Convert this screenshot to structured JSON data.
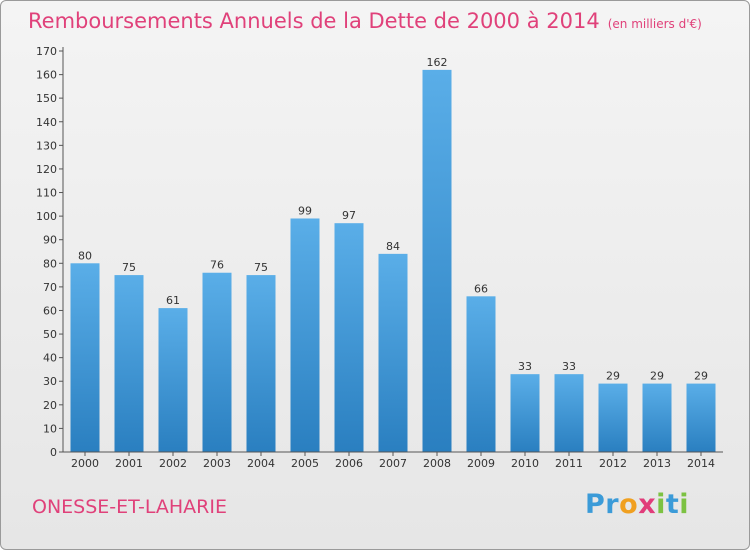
{
  "title": "Remboursements Annuels de la Dette de 2000 à 2014",
  "unit": "(en milliers d'€)",
  "place": "ONESSE-ET-LAHARIE",
  "logo": {
    "letters": [
      "P",
      "r",
      "o",
      "x",
      "i",
      "t",
      "i"
    ],
    "colors": [
      "#3b9bd8",
      "#3b9bd8",
      "#f0a020",
      "#e13c7a",
      "#7cc242",
      "#3b9bd8",
      "#7cc242"
    ]
  },
  "colors": {
    "bar_top": "#5aaee8",
    "bar_bottom": "#2a7fc0",
    "text_accent": "#e0417a"
  },
  "chart_data": {
    "type": "bar",
    "categories": [
      "2000",
      "2001",
      "2002",
      "2003",
      "2004",
      "2005",
      "2006",
      "2007",
      "2008",
      "2009",
      "2010",
      "2011",
      "2012",
      "2013",
      "2014"
    ],
    "values": [
      80,
      75,
      61,
      76,
      75,
      99,
      97,
      84,
      162,
      66,
      33,
      33,
      29,
      29,
      29
    ],
    "ylim": [
      0,
      170
    ],
    "yticks": [
      0,
      10,
      20,
      30,
      40,
      50,
      60,
      70,
      80,
      90,
      100,
      110,
      120,
      130,
      140,
      150,
      160,
      170
    ],
    "grid": false
  }
}
